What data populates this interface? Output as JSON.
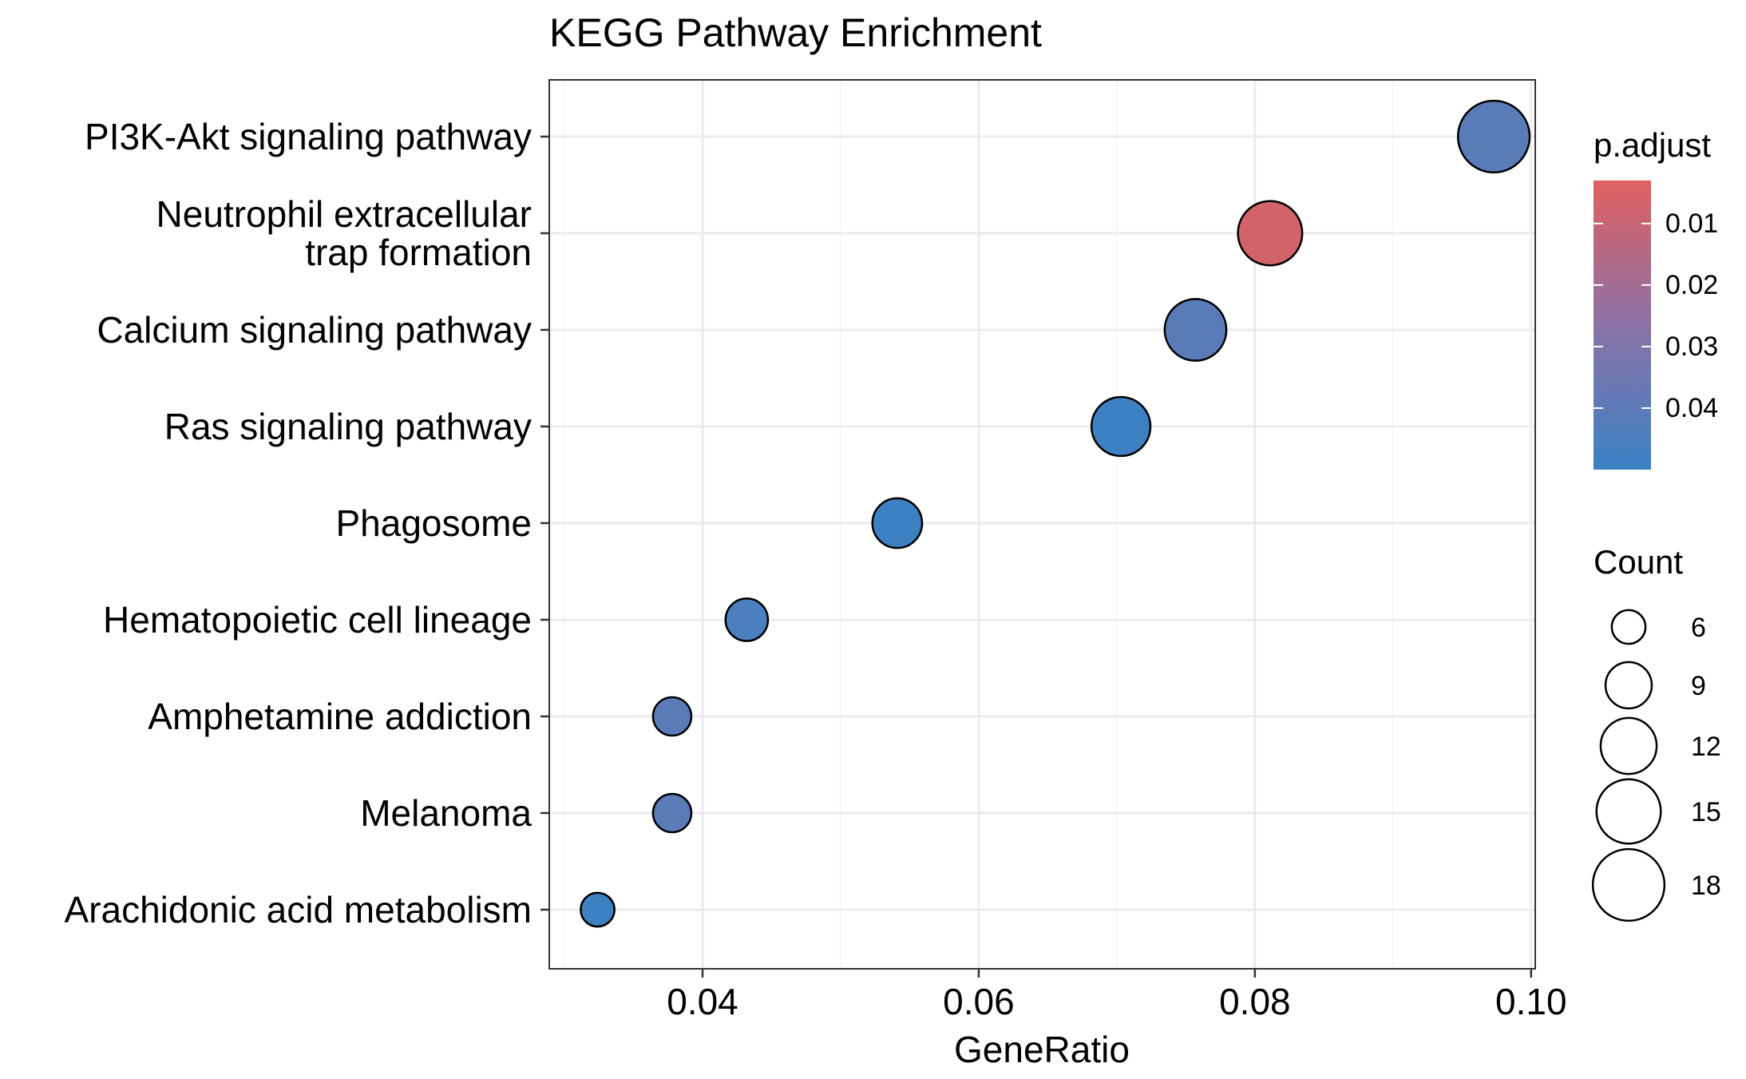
{
  "chart_data": {
    "type": "scatter",
    "title": "KEGG Pathway Enrichment",
    "xlabel": "GeneRatio",
    "ylabel": "",
    "xlim": [
      0.0289,
      0.1003
    ],
    "xticks": [
      0.04,
      0.06,
      0.08,
      0.1
    ],
    "xtick_labels": [
      "0.04",
      "0.06",
      "0.08",
      "0.10"
    ],
    "grid": true,
    "categories": [
      {
        "label": [
          "PI3K-Akt signaling pathway"
        ],
        "x": 0.0973,
        "count": 18,
        "p_adjust": 0.041
      },
      {
        "label": [
          "Neutrophil extracellular",
          "trap formation"
        ],
        "x": 0.0811,
        "count": 15,
        "p_adjust": 0.007
      },
      {
        "label": [
          "Calcium signaling pathway"
        ],
        "x": 0.0757,
        "count": 14,
        "p_adjust": 0.041
      },
      {
        "label": [
          "Ras signaling pathway"
        ],
        "x": 0.0703,
        "count": 13,
        "p_adjust": 0.049
      },
      {
        "label": [
          "Phagosome"
        ],
        "x": 0.0541,
        "count": 10,
        "p_adjust": 0.049
      },
      {
        "label": [
          "Hematopoietic cell lineage"
        ],
        "x": 0.0432,
        "count": 8,
        "p_adjust": 0.045
      },
      {
        "label": [
          "Amphetamine addiction"
        ],
        "x": 0.0378,
        "count": 7,
        "p_adjust": 0.041
      },
      {
        "label": [
          "Melanoma"
        ],
        "x": 0.0378,
        "count": 7,
        "p_adjust": 0.041
      },
      {
        "label": [
          "Arachidonic acid metabolism"
        ],
        "x": 0.0324,
        "count": 6,
        "p_adjust": 0.049
      }
    ],
    "color_legend": {
      "title": "p.adjust",
      "range": [
        0.003,
        0.05
      ],
      "low_color": "#E0605E",
      "high_color": "#3A82C4",
      "ticks": [
        0.01,
        0.02,
        0.03,
        0.04
      ],
      "tick_labels": [
        "0.01",
        "0.02",
        "0.03",
        "0.04"
      ]
    },
    "size_legend": {
      "title": "Count",
      "values": [
        6,
        9,
        12,
        15,
        18
      ],
      "labels": [
        "6",
        "9",
        "12",
        "15",
        "18"
      ]
    },
    "colors": {
      "panel_border": "#333333",
      "grid_major": "#EBEBEB",
      "grid_minor": "#F4F4F4",
      "point_stroke": "#000000"
    }
  }
}
